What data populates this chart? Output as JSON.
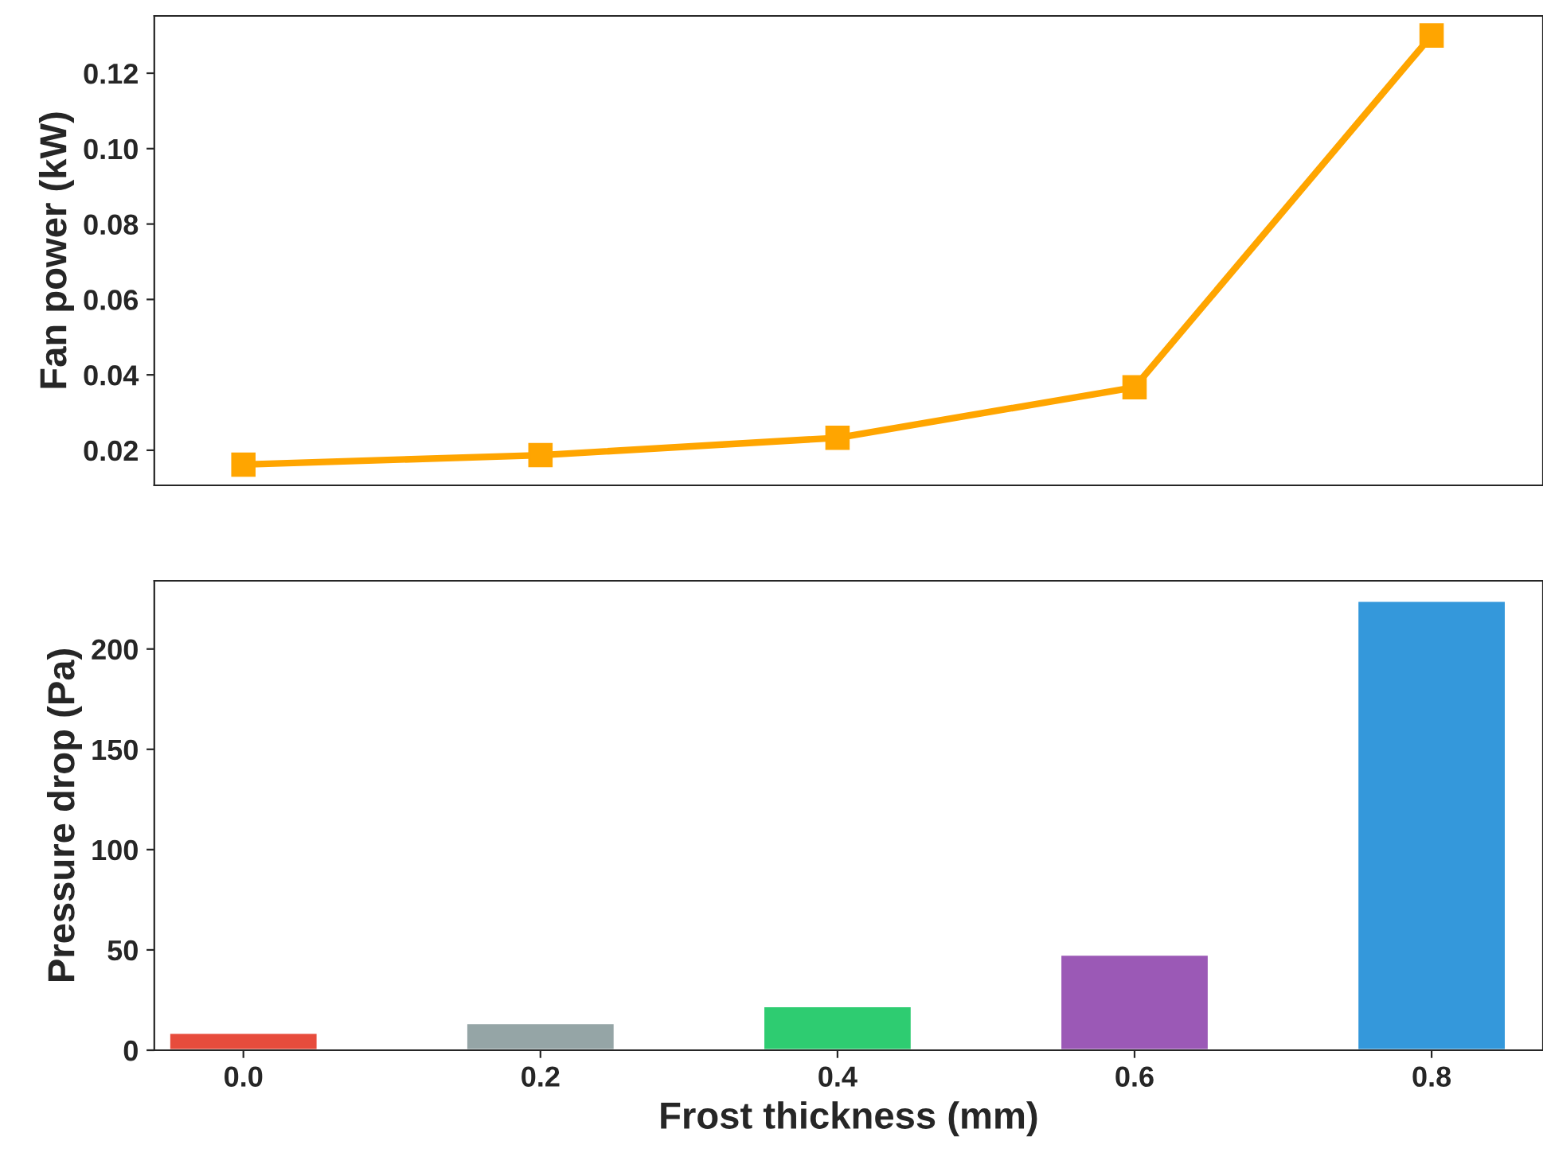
{
  "chart_data": [
    {
      "type": "line",
      "ylabel": "Fan power (kW)",
      "x": [
        0.0,
        0.2,
        0.4,
        0.6,
        0.8
      ],
      "xlim": [
        -0.06,
        0.875
      ],
      "ylim": [
        0.0107,
        0.1352
      ],
      "yticks": [
        0.02,
        0.04,
        0.06,
        0.08,
        {
          "value": 0.1,
          "label": "0.10"
        },
        0.12
      ],
      "tick_labels": "y",
      "marker": "square",
      "line_style": "solid",
      "grid": false,
      "legend": false,
      "series": [
        {
          "color": "#ffa500",
          "values": [
            0.0162,
            0.0187,
            0.0233,
            0.0367,
            0.13
          ]
        }
      ]
    },
    {
      "type": "bar",
      "xlabel": "Frost thickness (mm)",
      "ylabel": "Pressure drop (Pa)",
      "x": [
        0.0,
        0.2,
        0.4,
        0.6,
        0.8
      ],
      "xlim": [
        -0.06,
        0.875
      ],
      "xticks": [
        {
          "value": 0.0,
          "label": "0.0"
        },
        {
          "value": 0.2,
          "label": "0.2"
        },
        {
          "value": 0.4,
          "label": "0.4"
        },
        {
          "value": 0.6,
          "label": "0.6"
        },
        {
          "value": 0.8,
          "label": "0.8"
        }
      ],
      "ylim": [
        0,
        234
      ],
      "yticks": [
        0,
        50,
        100,
        150,
        200
      ],
      "grid": false,
      "legend": false,
      "values": [
        8.7,
        13.5,
        22,
        47.6,
        224
      ],
      "colors": [
        "#e74c3c",
        "#95a5a6",
        "#2ecc71",
        "#9b59b6",
        "#3498db"
      ]
    }
  ]
}
